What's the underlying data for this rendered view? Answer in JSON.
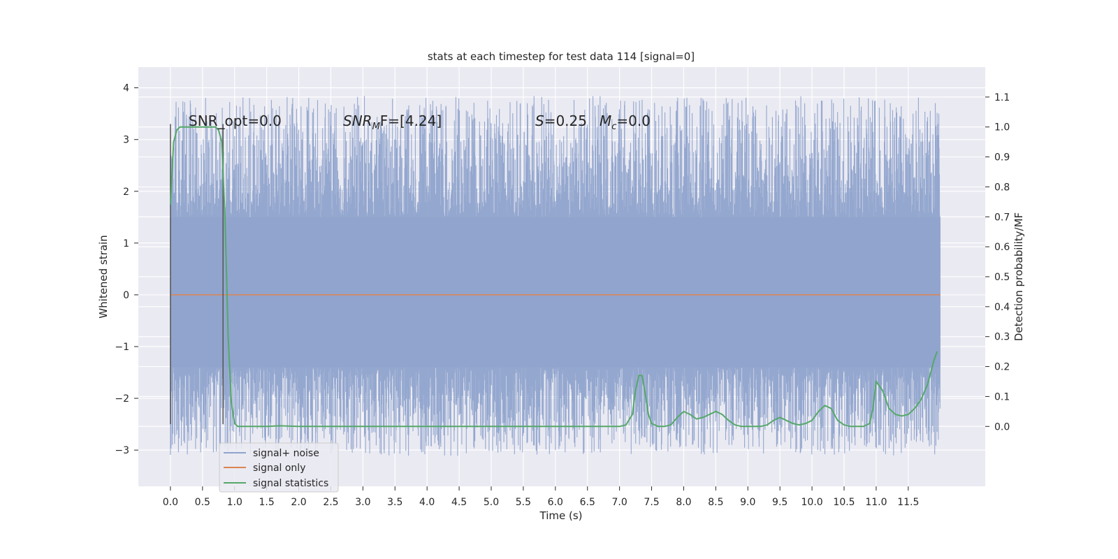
{
  "chart_data": {
    "type": "line",
    "title": "stats at each timestep for test data 114 [signal=0]",
    "xlabel": "Time (s)",
    "ylabel": "Whitened strain",
    "y2label": "Detection probability/MF",
    "xlim": [
      -0.5,
      12.7
    ],
    "ylim": [
      -3.7,
      4.4
    ],
    "y2lim": [
      -0.2,
      1.2
    ],
    "xticks": [
      0.0,
      0.5,
      1.0,
      1.5,
      2.0,
      2.5,
      3.0,
      3.5,
      4.0,
      4.5,
      5.0,
      5.5,
      6.0,
      6.5,
      7.0,
      7.5,
      8.0,
      8.5,
      9.0,
      9.5,
      10.0,
      10.5,
      11.0,
      11.5
    ],
    "xtick_labels": [
      "0.0",
      "0.5",
      "1.0",
      "1.5",
      "2.0",
      "2.5",
      "3.0",
      "3.5",
      "4.0",
      "4.5",
      "5.0",
      "5.5",
      "6.0",
      "6.5",
      "7.0",
      "7.5",
      "8.0",
      "8.5",
      "9.0",
      "9.5",
      "10.0",
      "10.5",
      "11.0",
      "11.5"
    ],
    "yticks": [
      -3,
      -2,
      -1,
      0,
      1,
      2,
      3,
      4
    ],
    "ytick_labels": [
      "−3",
      "−2",
      "−1",
      "0",
      "1",
      "2",
      "3",
      "4"
    ],
    "y2ticks": [
      0.0,
      0.1,
      0.2,
      0.3,
      0.4,
      0.5,
      0.6,
      0.7,
      0.8,
      0.9,
      1.0,
      1.1
    ],
    "y2tick_labels": [
      "0.0",
      "0.1",
      "0.2",
      "0.3",
      "0.4",
      "0.5",
      "0.6",
      "0.7",
      "0.8",
      "0.9",
      "1.0",
      "1.1"
    ],
    "grid": true,
    "legend_position": "lower-left",
    "legend": [
      {
        "label": "signal+ noise",
        "color": "#8fa3cc"
      },
      {
        "label": "signal only",
        "color": "#dd8452"
      },
      {
        "label": "signal statistics",
        "color": "#55a868"
      }
    ],
    "annotations": {
      "snr_opt": "SNR_opt=0.0",
      "snr_mf_sym": "SNR",
      "snr_mf_sub": "M",
      "snr_mf_rest": "F=[4.24]",
      "s_sym": "S",
      "s_rest": "=0.25",
      "mc_sym": "M",
      "mc_sub": "c",
      "mc_rest": "=0.0"
    },
    "markers_x": [
      0.0,
      0.82
    ],
    "noise_envelope": {
      "typical_range": [
        -1.4,
        1.5
      ],
      "peak_range": [
        -3.3,
        4.1
      ],
      "x_range": [
        0.0,
        12.0
      ]
    },
    "signal_only": {
      "x": [
        0.0,
        12.0
      ],
      "y": [
        0.0,
        0.0
      ]
    },
    "series": [
      {
        "name": "signal statistics",
        "axis": "right",
        "x": [
          0.0,
          0.05,
          0.1,
          0.15,
          0.2,
          0.3,
          0.4,
          0.5,
          0.6,
          0.7,
          0.75,
          0.8,
          0.85,
          0.9,
          0.95,
          1.0,
          1.05,
          1.1,
          1.5,
          1.7,
          2.0,
          6.5,
          7.0,
          7.1,
          7.2,
          7.25,
          7.3,
          7.35,
          7.4,
          7.45,
          7.5,
          7.6,
          7.7,
          7.8,
          7.9,
          8.0,
          8.1,
          8.2,
          8.3,
          8.4,
          8.5,
          8.6,
          8.7,
          8.8,
          8.9,
          9.0,
          9.2,
          9.3,
          9.4,
          9.5,
          9.6,
          9.7,
          9.8,
          9.9,
          10.0,
          10.1,
          10.2,
          10.3,
          10.4,
          10.5,
          10.6,
          10.7,
          10.8,
          10.9,
          10.95,
          11.0,
          11.1,
          11.2,
          11.3,
          11.4,
          11.5,
          11.6,
          11.7,
          11.8,
          11.9,
          11.95
        ],
        "values": [
          0.74,
          0.95,
          0.99,
          1.0,
          1.0,
          1.0,
          1.0,
          1.0,
          1.0,
          1.0,
          0.99,
          0.95,
          0.7,
          0.3,
          0.08,
          0.01,
          0.0,
          0.0,
          0.0,
          0.002,
          0.0,
          0.0,
          0.0,
          0.005,
          0.04,
          0.12,
          0.17,
          0.17,
          0.11,
          0.04,
          0.01,
          0.0,
          0.0,
          0.005,
          0.03,
          0.05,
          0.04,
          0.025,
          0.03,
          0.04,
          0.05,
          0.04,
          0.02,
          0.005,
          0.0,
          0.0,
          0.0,
          0.005,
          0.02,
          0.03,
          0.02,
          0.01,
          0.005,
          0.01,
          0.02,
          0.05,
          0.07,
          0.06,
          0.02,
          0.005,
          0.0,
          0.0,
          0.0,
          0.01,
          0.06,
          0.15,
          0.12,
          0.06,
          0.04,
          0.035,
          0.04,
          0.06,
          0.09,
          0.14,
          0.22,
          0.25
        ]
      }
    ]
  }
}
